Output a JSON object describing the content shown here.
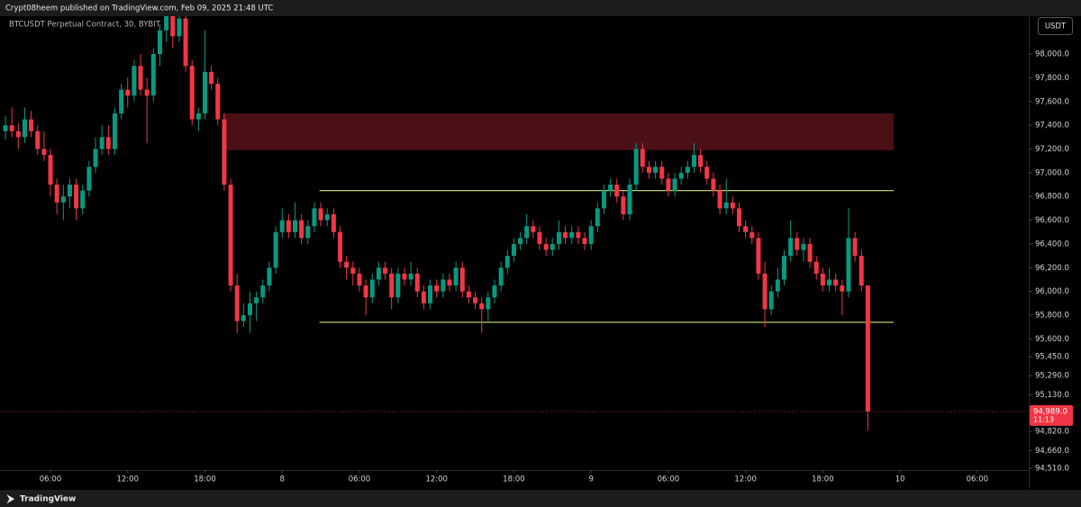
{
  "chart_data": {
    "type": "candlestick",
    "header": "Crypt08heem published on TradingView.com, Feb 09, 2025 21:48 UTC",
    "title": "BTCUSDT Perpetual Contract, 30, BYBIT",
    "currency": "USDT",
    "footer": "TradingView",
    "up_color": "#089981",
    "down_color": "#f23645",
    "xlim": [
      2.08,
      82.0
    ],
    "ylim": [
      94495,
      98319
    ],
    "xticks": [
      {
        "value": 6,
        "label": "06:00"
      },
      {
        "value": 12,
        "label": "12:00"
      },
      {
        "value": 18,
        "label": "18:00"
      },
      {
        "value": 24,
        "label": "8"
      },
      {
        "value": 30,
        "label": "06:00"
      },
      {
        "value": 36,
        "label": "12:00"
      },
      {
        "value": 42,
        "label": "18:00"
      },
      {
        "value": 48,
        "label": "9"
      },
      {
        "value": 54,
        "label": "06:00"
      },
      {
        "value": 60,
        "label": "12:00"
      },
      {
        "value": 66,
        "label": "18:00"
      },
      {
        "value": 72,
        "label": "10"
      },
      {
        "value": 78,
        "label": "06:00"
      }
    ],
    "yticks": [
      {
        "value": 98000,
        "label": "98,000.0"
      },
      {
        "value": 97800,
        "label": "97,800.0"
      },
      {
        "value": 97600,
        "label": "97,600.0"
      },
      {
        "value": 97400,
        "label": "97,400.0"
      },
      {
        "value": 97200,
        "label": "97,200.0"
      },
      {
        "value": 97000,
        "label": "97,000.0"
      },
      {
        "value": 96800,
        "label": "96,800.0"
      },
      {
        "value": 96600,
        "label": "96,600.0"
      },
      {
        "value": 96400,
        "label": "96,400.0"
      },
      {
        "value": 96200,
        "label": "96,200.0"
      },
      {
        "value": 96000,
        "label": "96,000.0"
      },
      {
        "value": 95800,
        "label": "95,800.0"
      },
      {
        "value": 95600,
        "label": "95,600.0"
      },
      {
        "value": 95450,
        "label": "95,450.0"
      },
      {
        "value": 95290,
        "label": "95,290.0"
      },
      {
        "value": 95130,
        "label": "95,130.0"
      },
      {
        "value": 94820,
        "label": "94,820.0"
      },
      {
        "value": 94660,
        "label": "94,660.0"
      },
      {
        "value": 94510,
        "label": "94,510.0"
      }
    ],
    "last_price": {
      "value": 94989,
      "label": "94,989.0",
      "countdown": "11:13",
      "color": "#f23645"
    },
    "zones": [
      {
        "x": [
          19.4,
          71.5
        ],
        "y": [
          97190,
          97500
        ],
        "color": "#4a1016"
      }
    ],
    "hlines": [
      {
        "y": 96850,
        "x": [
          26.9,
          71.5
        ],
        "color": "#b8cc6e"
      },
      {
        "y": 95740,
        "x": [
          26.9,
          71.5
        ],
        "color": "#b8cc6e"
      }
    ],
    "x": [
      2.5,
      3,
      3.5,
      4,
      4.5,
      5,
      5.5,
      6,
      6.5,
      7,
      7.5,
      8,
      8.5,
      9,
      9.5,
      10,
      10.5,
      11,
      11.5,
      12,
      12.5,
      13,
      13.5,
      14,
      14.5,
      15,
      15.5,
      16,
      16.5,
      17,
      17.5,
      18,
      18.5,
      19,
      19.5,
      20,
      20.5,
      21,
      21.5,
      22,
      22.5,
      23,
      23.5,
      24,
      24.5,
      25,
      25.5,
      26,
      26.5,
      27,
      27.5,
      28,
      28.5,
      29,
      29.5,
      30,
      30.5,
      31,
      31.5,
      32,
      32.5,
      33,
      33.5,
      34,
      34.5,
      35,
      35.5,
      36,
      36.5,
      37,
      37.5,
      38,
      38.5,
      39,
      39.5,
      40,
      40.5,
      41,
      41.5,
      42,
      42.5,
      43,
      43.5,
      44,
      44.5,
      45,
      45.5,
      46,
      46.5,
      47,
      47.5,
      48,
      48.5,
      49,
      49.5,
      50,
      50.5,
      51,
      51.5,
      52,
      52.5,
      53,
      53.5,
      54,
      54.5,
      55,
      55.5,
      56,
      56.5,
      57,
      57.5,
      58,
      58.5,
      59,
      59.5,
      60,
      60.5,
      61,
      61.5,
      62,
      62.5,
      63,
      63.5,
      64,
      64.5,
      65,
      65.5,
      66,
      66.5,
      67,
      67.5,
      68,
      68.5,
      69,
      69.5
    ],
    "open": [
      97350,
      97400,
      97350,
      97300,
      97450,
      97350,
      97200,
      97150,
      96900,
      96750,
      96800,
      96900,
      96700,
      96850,
      97050,
      97200,
      97300,
      97200,
      97500,
      97700,
      97650,
      97900,
      97700,
      97650,
      98000,
      98200,
      98350,
      98150,
      98300,
      97900,
      97450,
      97500,
      97850,
      97750,
      97450,
      96900,
      96050,
      95750,
      95800,
      95900,
      95950,
      96050,
      96200,
      96500,
      96600,
      96500,
      96600,
      96450,
      96550,
      96700,
      96600,
      96650,
      96500,
      96250,
      96200,
      96150,
      96050,
      95950,
      96100,
      96200,
      96150,
      95950,
      96150,
      96100,
      96150,
      96000,
      95900,
      96050,
      96000,
      96100,
      96050,
      96200,
      96000,
      95950,
      95900,
      95850,
      95950,
      96050,
      96200,
      96300,
      96400,
      96450,
      96550,
      96500,
      96400,
      96350,
      96400,
      96500,
      96450,
      96500,
      96450,
      96400,
      96550,
      96700,
      96850,
      96900,
      96800,
      96650,
      96900,
      97200,
      97050,
      97000,
      97050,
      96950,
      96850,
      96950,
      97000,
      97050,
      97150,
      97050,
      96950,
      96850,
      96700,
      96750,
      96700,
      96550,
      96500,
      96450,
      96150,
      95850,
      96000,
      96100,
      96300,
      96450,
      96350,
      96400,
      96250,
      96150,
      96050,
      96100,
      96050,
      96000,
      96450,
      96300,
      96050
    ],
    "high": [
      97480,
      97550,
      97420,
      97550,
      97520,
      97400,
      97350,
      97200,
      96950,
      96900,
      96950,
      96950,
      96900,
      97100,
      97300,
      97400,
      97400,
      97550,
      97750,
      97800,
      97950,
      98000,
      97800,
      98050,
      98250,
      98450,
      98400,
      98400,
      98350,
      97950,
      97550,
      98200,
      97900,
      97800,
      97500,
      96950,
      96150,
      95900,
      96000,
      96000,
      96100,
      96250,
      96550,
      96700,
      96650,
      96750,
      96650,
      96600,
      96750,
      96750,
      96700,
      96700,
      96550,
      96300,
      96250,
      96200,
      96100,
      96150,
      96250,
      96250,
      96200,
      96200,
      96200,
      96250,
      96200,
      96050,
      96100,
      96100,
      96150,
      96150,
      96250,
      96250,
      96050,
      96000,
      95950,
      96000,
      96100,
      96250,
      96350,
      96450,
      96500,
      96650,
      96600,
      96550,
      96450,
      96450,
      96600,
      96550,
      96550,
      96550,
      96500,
      96600,
      96750,
      96900,
      96950,
      96950,
      96850,
      96950,
      97250,
      97250,
      97100,
      97100,
      97100,
      97000,
      97000,
      97050,
      97100,
      97250,
      97200,
      97100,
      97000,
      96900,
      96950,
      96800,
      96750,
      96600,
      96550,
      96500,
      96250,
      96050,
      96200,
      96350,
      96600,
      96500,
      96450,
      96450,
      96300,
      96200,
      96200,
      96150,
      96100,
      96700,
      96500,
      96350,
      96050
    ],
    "low": [
      97280,
      97300,
      97200,
      97250,
      97300,
      97150,
      97100,
      96800,
      96650,
      96600,
      96700,
      96600,
      96650,
      96800,
      97000,
      97150,
      97150,
      97150,
      97450,
      97550,
      97600,
      97650,
      97250,
      97600,
      97900,
      98100,
      98050,
      98100,
      97850,
      97400,
      97350,
      97450,
      97700,
      97400,
      96850,
      96000,
      95650,
      95700,
      95650,
      95750,
      95900,
      96000,
      96150,
      96450,
      96450,
      96450,
      96400,
      96400,
      96500,
      96550,
      96550,
      96450,
      96200,
      96100,
      96050,
      96000,
      95800,
      95900,
      96050,
      96100,
      95850,
      95900,
      96050,
      96050,
      95950,
      95850,
      95850,
      95950,
      95950,
      96000,
      96000,
      95950,
      95900,
      95850,
      95650,
      95750,
      95900,
      96000,
      96150,
      96250,
      96350,
      96400,
      96450,
      96350,
      96300,
      96300,
      96350,
      96400,
      96400,
      96400,
      96350,
      96350,
      96500,
      96650,
      96800,
      96750,
      96600,
      96600,
      96850,
      97000,
      96950,
      96950,
      96900,
      96800,
      96800,
      96900,
      96950,
      97000,
      97000,
      96900,
      96800,
      96650,
      96650,
      96650,
      96500,
      96450,
      96400,
      96100,
      95700,
      95800,
      95950,
      96050,
      96250,
      96300,
      96250,
      96200,
      96100,
      96000,
      96000,
      96000,
      95800,
      95950,
      96250,
      96000,
      94830
    ],
    "close": [
      97400,
      97350,
      97300,
      97450,
      97350,
      97200,
      97150,
      96900,
      96750,
      96800,
      96900,
      96700,
      96850,
      97050,
      97200,
      97300,
      97200,
      97500,
      97700,
      97650,
      97900,
      97700,
      97650,
      98000,
      98200,
      98350,
      98150,
      98300,
      97900,
      97450,
      97500,
      97850,
      97750,
      97450,
      96900,
      96050,
      95750,
      95800,
      95900,
      95950,
      96050,
      96200,
      96500,
      96600,
      96500,
      96600,
      96450,
      96550,
      96700,
      96600,
      96650,
      96500,
      96250,
      96200,
      96150,
      96050,
      95950,
      96100,
      96200,
      96150,
      95950,
      96150,
      96100,
      96150,
      96000,
      95900,
      96050,
      96000,
      96100,
      96050,
      96200,
      96000,
      95950,
      95900,
      95850,
      95950,
      96050,
      96200,
      96300,
      96400,
      96450,
      96550,
      96500,
      96400,
      96350,
      96400,
      96500,
      96450,
      96500,
      96450,
      96400,
      96550,
      96700,
      96850,
      96900,
      96800,
      96650,
      96900,
      97200,
      97050,
      97000,
      97050,
      96950,
      96850,
      96950,
      97000,
      97050,
      97150,
      97050,
      96950,
      96850,
      96700,
      96750,
      96700,
      96550,
      96500,
      96450,
      96150,
      95850,
      96000,
      96100,
      96300,
      96450,
      96350,
      96400,
      96250,
      96150,
      96050,
      96100,
      96050,
      96000,
      96450,
      96300,
      96050,
      94989
    ]
  }
}
